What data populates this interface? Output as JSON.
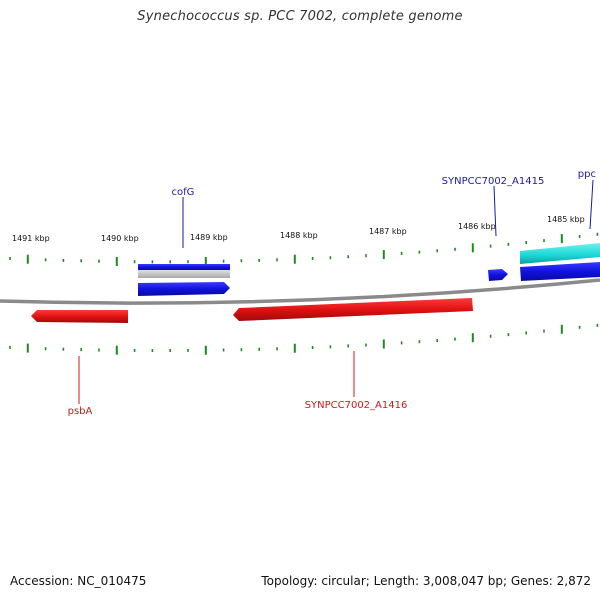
{
  "title": "Synechococcus sp. PCC 7002, complete genome",
  "footer": {
    "accession": "Accession: NC_010475",
    "summary": "Topology: circular; Length: 3,008,047 bp; Genes: 2,872"
  },
  "colors": {
    "backbone": "#8a8a8a",
    "forward_gene": "#1515e6",
    "reverse_gene": "#e61515",
    "rna_gene": "#19d6d6",
    "gene_shadow": "#c8c8c8",
    "tick": "#1c8a1c",
    "forward_label": "#1a1aa8",
    "reverse_label": "#cc1a1a"
  },
  "scale": {
    "unit": "kbp",
    "labels": [
      "1491 kbp",
      "1490 kbp",
      "1489 kbp",
      "1488 kbp",
      "1487 kbp",
      "1486 kbp",
      "1485 kbp"
    ]
  },
  "genes": [
    {
      "name": "cofG",
      "strand": "forward",
      "labeled": true
    },
    {
      "name": "SYNPCC7002_A1415",
      "strand": "forward",
      "labeled": true
    },
    {
      "name": "ppc",
      "strand": "forward",
      "labeled": true
    },
    {
      "name": "psbA",
      "strand": "reverse",
      "labeled": true
    },
    {
      "name": "SYNPCC7002_A1416",
      "strand": "reverse",
      "labeled": true
    }
  ]
}
